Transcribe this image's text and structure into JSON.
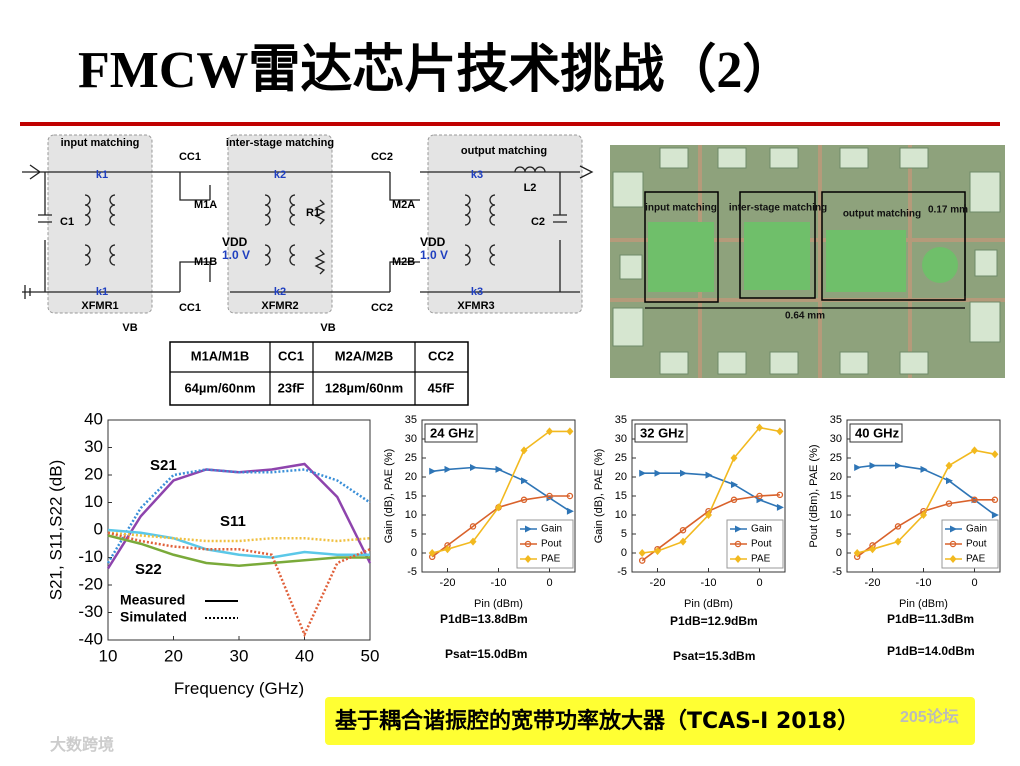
{
  "title": "FMCW雷达芯片技术挑战（2）",
  "schematic": {
    "labels": [
      "input matching",
      "inter-stage matching",
      "output matching",
      "k1",
      "k1",
      "k2",
      "k2",
      "k3",
      "k3",
      "CC1",
      "CC1",
      "CC2",
      "CC2",
      "M1A",
      "M1B",
      "M2A",
      "M2B",
      "R1",
      "VDD",
      "1.0 V",
      "VDD",
      "1.0 V",
      "C1",
      "C2",
      "L2",
      "XFMR1",
      "XFMR2",
      "XFMR3",
      "VB",
      "VB"
    ]
  },
  "table": {
    "header": [
      "M1A/M1B",
      "CC1",
      "M2A/M2B",
      "CC2"
    ],
    "rows": [
      [
        "64µm/60nm",
        "23fF",
        "128µm/60nm",
        "45fF"
      ]
    ]
  },
  "die_photo": {
    "labels": [
      "input matching",
      "inter-stage matching",
      "output matching",
      "0.17 mm",
      "0.64 mm"
    ]
  },
  "chart_data": [
    {
      "type": "line",
      "xlabel": "Frequency (GHz)",
      "ylabel": "S21, S11,S22 (dB)",
      "x": [
        10,
        15,
        20,
        25,
        30,
        35,
        40,
        45,
        50
      ],
      "xlim": [
        10,
        50
      ],
      "xticks": [
        10,
        20,
        30,
        40,
        50
      ],
      "ylim": [
        -40,
        40
      ],
      "yticks": [
        -40,
        -30,
        -20,
        -10,
        0,
        10,
        20,
        30,
        40
      ],
      "grid": false,
      "series": [
        {
          "color": "#8e44ad",
          "style": "solid",
          "values": [
            -14,
            5,
            18,
            22,
            21,
            22,
            24,
            12,
            -12
          ]
        },
        {
          "color": "#3a8fd8",
          "style": "dotted",
          "values": [
            -12,
            8,
            20,
            22,
            21,
            21,
            22,
            18,
            10
          ]
        },
        {
          "color": "#5bc8e8",
          "style": "solid",
          "values": [
            0,
            -1,
            -3,
            -7,
            -9,
            -10,
            -8,
            -9,
            -9
          ]
        },
        {
          "color": "#f0c040",
          "style": "dotted",
          "values": [
            -1,
            -2,
            -3,
            -4,
            -4,
            -3,
            -3,
            -4,
            -3
          ]
        },
        {
          "color": "#7aaa3a",
          "style": "solid",
          "values": [
            -2,
            -5,
            -9,
            -12,
            -13,
            -12,
            -11,
            -10,
            -10
          ]
        },
        {
          "color": "#e0603a",
          "style": "dotted",
          "values": [
            -1,
            -4,
            -6,
            -7,
            -7,
            -9,
            -38,
            -12,
            -7
          ]
        }
      ],
      "annotations": [
        "S21",
        "S11",
        "S22"
      ],
      "legend_entries": [
        "Measured",
        "Simulated"
      ]
    },
    {
      "type": "line",
      "title": "24 GHz",
      "xlabel": "Pin (dBm)",
      "ylabel": "Gain (dB), PAE (%)",
      "x": [
        -23,
        -20,
        -15,
        -10,
        -5,
        0,
        4
      ],
      "xlim": [
        -25,
        5
      ],
      "xticks": [
        -20,
        -10,
        0
      ],
      "ylim": [
        -5,
        35
      ],
      "yticks": [
        -5,
        0,
        5,
        10,
        15,
        20,
        25,
        30,
        35
      ],
      "grid": false,
      "legend": "lower right",
      "series": [
        {
          "name": "Gain",
          "color": "#2e75b6",
          "marker": "triangle",
          "values": [
            21.5,
            22,
            22.5,
            22,
            19,
            14.5,
            11
          ]
        },
        {
          "name": "Pout",
          "color": "#d9622b",
          "marker": "circle",
          "values": [
            -1,
            2,
            7,
            12,
            14,
            15,
            15
          ]
        },
        {
          "name": "PAE",
          "color": "#f2b91f",
          "marker": "diamond",
          "values": [
            0,
            1,
            3,
            12,
            27,
            32,
            32
          ]
        }
      ],
      "annotations": [
        "P1dB=13.8dBm",
        "Psat=15.0dBm"
      ]
    },
    {
      "type": "line",
      "title": "32 GHz",
      "xlabel": "Pin (dBm)",
      "ylabel": "Gain (dB), PAE (%)",
      "x": [
        -23,
        -20,
        -15,
        -10,
        -5,
        0,
        4
      ],
      "xlim": [
        -25,
        5
      ],
      "xticks": [
        -20,
        -10,
        0
      ],
      "ylim": [
        -5,
        35
      ],
      "yticks": [
        -5,
        0,
        5,
        10,
        15,
        20,
        25,
        30,
        35
      ],
      "grid": false,
      "legend": "lower right",
      "series": [
        {
          "name": "Gain",
          "color": "#2e75b6",
          "marker": "triangle",
          "values": [
            21,
            21,
            21,
            20.5,
            18,
            14,
            12
          ]
        },
        {
          "name": "Pout",
          "color": "#d9622b",
          "marker": "circle",
          "values": [
            -2,
            1,
            6,
            11,
            14,
            15,
            15.3
          ]
        },
        {
          "name": "PAE",
          "color": "#f2b91f",
          "marker": "diamond",
          "values": [
            0,
            0.5,
            3,
            10,
            25,
            33,
            32
          ]
        }
      ],
      "annotations": [
        "P1dB=12.9dBm",
        "Psat=15.3dBm"
      ]
    },
    {
      "type": "line",
      "title": "40 GHz",
      "xlabel": "Pin (dBm)",
      "ylabel": "Pout (dBm), PAE (%)",
      "x": [
        -23,
        -20,
        -15,
        -10,
        -5,
        0,
        4
      ],
      "xlim": [
        -25,
        5
      ],
      "xticks": [
        -20,
        -10,
        0
      ],
      "ylim": [
        -5,
        35
      ],
      "yticks": [
        -5,
        0,
        5,
        10,
        15,
        20,
        25,
        30,
        35
      ],
      "grid": false,
      "legend": "lower right",
      "series": [
        {
          "name": "Gain",
          "color": "#2e75b6",
          "marker": "triangle",
          "values": [
            22.5,
            23,
            23,
            22,
            19,
            14,
            10
          ]
        },
        {
          "name": "Pout",
          "color": "#d9622b",
          "marker": "circle",
          "values": [
            -1,
            2,
            7,
            11,
            13,
            14,
            14
          ]
        },
        {
          "name": "PAE",
          "color": "#f2b91f",
          "marker": "diamond",
          "values": [
            0,
            1,
            3,
            10,
            23,
            27,
            26
          ]
        }
      ],
      "annotations": [
        "P1dB=11.3dBm",
        "P1dB=14.0dBm"
      ]
    }
  ],
  "caption": "基于耦合谐振腔的宽带功率放大器（TCAS-I 2018）",
  "watermarks": [
    "大数跨境",
    "205论坛"
  ]
}
